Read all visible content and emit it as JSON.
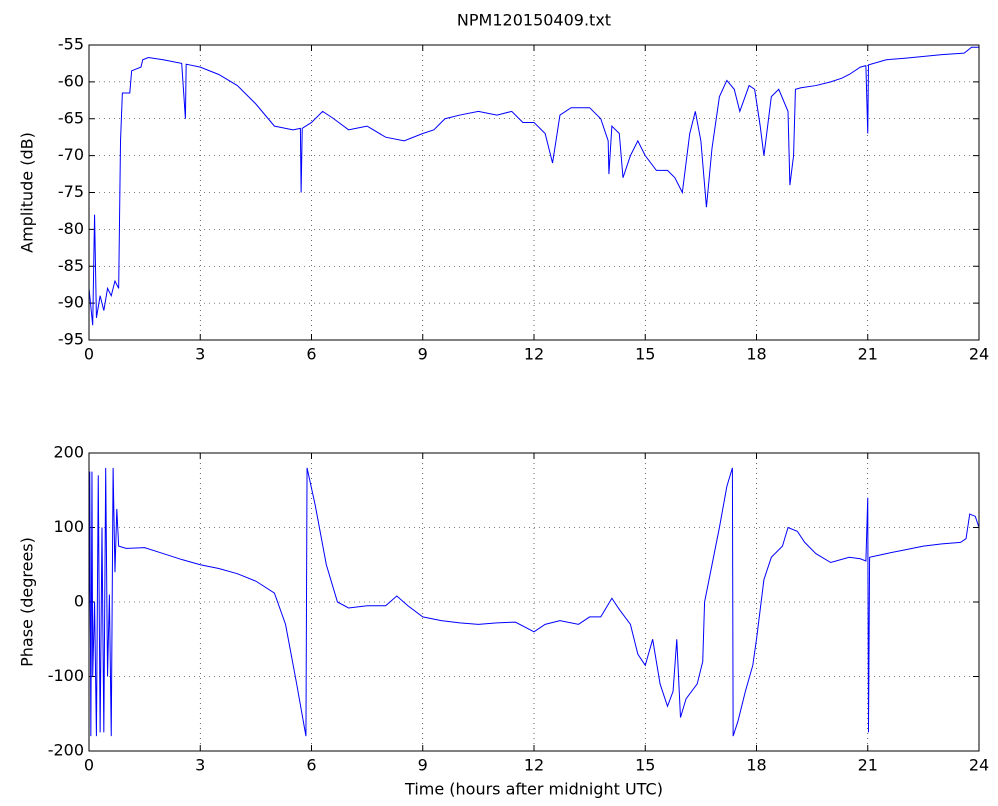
{
  "chart_data": [
    {
      "type": "line",
      "title": "NPM120150409.txt",
      "ylabel": "Amplitude (dB)",
      "color": "#0000ff",
      "grid": true,
      "xlim": [
        0,
        24
      ],
      "xticks": [
        0,
        3,
        6,
        9,
        12,
        15,
        18,
        21,
        24
      ],
      "ylim": [
        -95,
        -55
      ],
      "yticks": [
        -95,
        -90,
        -85,
        -80,
        -75,
        -70,
        -65,
        -60,
        -55
      ],
      "x": [
        0,
        0.1,
        0.15,
        0.2,
        0.3,
        0.4,
        0.5,
        0.6,
        0.7,
        0.8,
        0.85,
        0.9,
        1.1,
        1.15,
        1.4,
        1.45,
        1.6,
        2.0,
        2.5,
        2.6,
        2.62,
        3.0,
        3.5,
        4.0,
        4.5,
        5.0,
        5.5,
        5.7,
        5.72,
        5.75,
        6.0,
        6.3,
        6.6,
        7.0,
        7.5,
        8.0,
        8.5,
        9.0,
        9.3,
        9.6,
        10.0,
        10.5,
        11.0,
        11.4,
        11.7,
        12.0,
        12.3,
        12.5,
        12.7,
        13.0,
        13.5,
        13.8,
        14.0,
        14.02,
        14.1,
        14.3,
        14.4,
        14.6,
        14.8,
        15.0,
        15.3,
        15.6,
        15.8,
        16.0,
        16.2,
        16.35,
        16.5,
        16.65,
        16.8,
        17.0,
        17.2,
        17.4,
        17.55,
        17.8,
        17.95,
        18.1,
        18.2,
        18.4,
        18.6,
        18.85,
        18.9,
        19.0,
        19.05,
        19.2,
        19.6,
        20.0,
        20.3,
        20.5,
        20.8,
        20.95,
        21.0,
        21.02,
        21.5,
        22.0,
        23.0,
        23.6,
        23.8,
        24.0
      ],
      "values": [
        -88,
        -93,
        -78,
        -92,
        -89,
        -91,
        -88,
        -89,
        -87,
        -88,
        -68,
        -61.5,
        -61.5,
        -58.5,
        -58,
        -57,
        -56.7,
        -57,
        -57.5,
        -65,
        -57.6,
        -58,
        -59,
        -60.5,
        -63,
        -66,
        -66.5,
        -66.3,
        -75,
        -66.3,
        -65.5,
        -64,
        -65,
        -66.5,
        -66,
        -67.5,
        -68,
        -67,
        -66.5,
        -65,
        -64.5,
        -64,
        -64.5,
        -64,
        -65.5,
        -65.5,
        -67,
        -71,
        -64.5,
        -63.5,
        -63.5,
        -65,
        -68,
        -72.5,
        -66,
        -67,
        -73,
        -70,
        -68,
        -70,
        -72,
        -72,
        -73,
        -75,
        -67,
        -64,
        -68,
        -77,
        -69,
        -62,
        -59.8,
        -61,
        -64,
        -60.5,
        -61,
        -66,
        -70,
        -62,
        -61,
        -64,
        -74,
        -70,
        -61,
        -60.8,
        -60.5,
        -60,
        -59.5,
        -59,
        -58,
        -57.8,
        -67,
        -57.7,
        -57,
        -56.8,
        -56.3,
        -56.1,
        -55.3,
        -55.3
      ]
    },
    {
      "type": "line",
      "xlabel": "Time (hours after midnight UTC)",
      "ylabel": "Phase (degrees)",
      "color": "#0000ff",
      "grid": true,
      "xlim": [
        0,
        24
      ],
      "xticks": [
        0,
        3,
        6,
        9,
        12,
        15,
        18,
        21,
        24
      ],
      "ylim": [
        -200,
        200
      ],
      "yticks": [
        -200,
        -100,
        0,
        100,
        200
      ],
      "x": [
        0,
        0.02,
        0.05,
        0.08,
        0.1,
        0.15,
        0.2,
        0.25,
        0.3,
        0.35,
        0.4,
        0.45,
        0.5,
        0.55,
        0.6,
        0.65,
        0.7,
        0.75,
        0.8,
        1.0,
        1.5,
        2.0,
        2.5,
        3.0,
        3.5,
        4.0,
        4.5,
        5.0,
        5.3,
        5.6,
        5.85,
        5.88,
        6.1,
        6.4,
        6.7,
        7.0,
        7.5,
        8.0,
        8.3,
        8.6,
        9.0,
        9.5,
        10.0,
        10.5,
        11.0,
        11.5,
        12.0,
        12.3,
        12.7,
        13.2,
        13.5,
        13.8,
        14.1,
        14.3,
        14.6,
        14.8,
        15.0,
        15.2,
        15.4,
        15.6,
        15.75,
        15.85,
        15.95,
        16.1,
        16.4,
        16.55,
        16.6,
        16.8,
        17.0,
        17.2,
        17.35,
        17.37,
        17.5,
        17.7,
        17.9,
        18.0,
        18.2,
        18.4,
        18.7,
        18.85,
        19.1,
        19.3,
        19.6,
        20.0,
        20.5,
        20.8,
        20.95,
        21.0,
        21.02,
        21.05,
        21.5,
        22.0,
        22.5,
        23.0,
        23.5,
        23.65,
        23.75,
        23.9,
        24.0
      ],
      "values": [
        -50,
        175,
        -180,
        175,
        -100,
        0,
        -180,
        170,
        -175,
        100,
        -175,
        180,
        -100,
        10,
        -180,
        180,
        40,
        125,
        75,
        72,
        73,
        65,
        57,
        50,
        45,
        38,
        28,
        12,
        -30,
        -110,
        -180,
        180,
        130,
        50,
        0,
        -8,
        -5,
        -5,
        8,
        -5,
        -20,
        -25,
        -28,
        -30,
        -28,
        -27,
        -40,
        -30,
        -25,
        -30,
        -20,
        -20,
        5,
        -10,
        -30,
        -70,
        -85,
        -50,
        -110,
        -140,
        -120,
        -50,
        -155,
        -130,
        -110,
        -80,
        0,
        50,
        100,
        155,
        180,
        -180,
        -160,
        -120,
        -85,
        -50,
        30,
        60,
        75,
        100,
        95,
        80,
        65,
        53,
        60,
        58,
        55,
        140,
        -175,
        60,
        65,
        70,
        75,
        78,
        80,
        85,
        118,
        115,
        100
      ]
    }
  ]
}
